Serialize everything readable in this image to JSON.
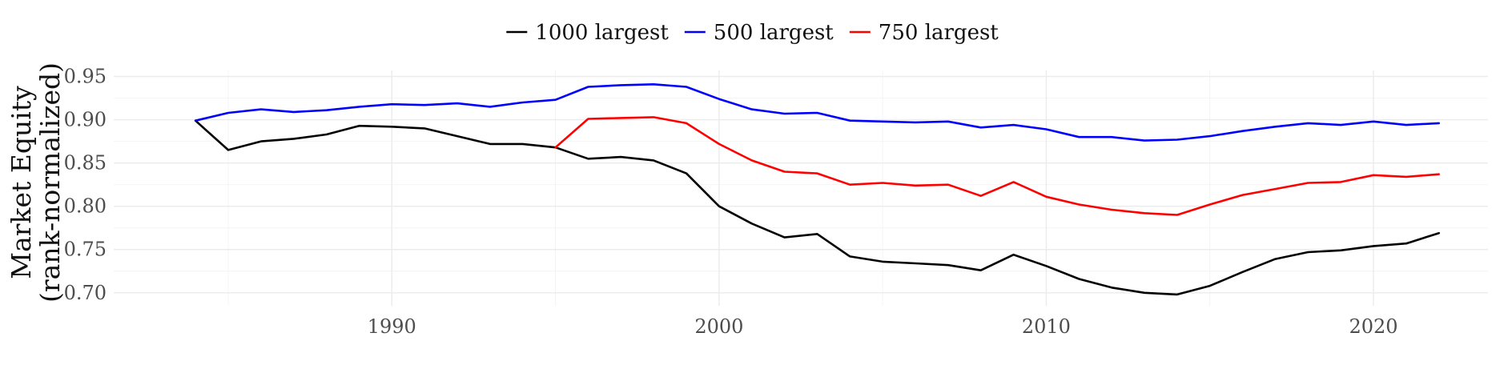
{
  "chart_data": {
    "type": "line",
    "title": "",
    "xlabel": "",
    "ylabel": [
      "Market Equity",
      "(rank-normalized)"
    ],
    "xlim": [
      1981.5,
      2023.5
    ],
    "ylim": [
      0.685,
      0.957
    ],
    "x_ticks": [
      1990,
      2000,
      2010,
      2020
    ],
    "x_minor_ticks": [
      1985,
      1995,
      2005,
      2015
    ],
    "y_ticks": [
      0.7,
      0.75,
      0.8,
      0.85,
      0.9,
      0.95
    ],
    "y_tick_labels": [
      "0.70",
      "0.75",
      "0.80",
      "0.85",
      "0.90",
      "0.95"
    ],
    "y_minor_ticks": [
      0.725,
      0.775,
      0.825,
      0.875,
      0.925
    ],
    "grid": true,
    "legend_position": "top",
    "series": [
      {
        "name": "1000 largest",
        "color": "#000000",
        "x": [
          1984,
          1985,
          1986,
          1987,
          1988,
          1989,
          1990,
          1991,
          1992,
          1993,
          1994,
          1995,
          1996,
          1997,
          1998,
          1999,
          2000,
          2001,
          2002,
          2003,
          2004,
          2005,
          2006,
          2007,
          2008,
          2009,
          2010,
          2011,
          2012,
          2013,
          2014,
          2015,
          2016,
          2017,
          2018,
          2019,
          2020,
          2021,
          2022
        ],
        "y": [
          0.899,
          0.865,
          0.875,
          0.878,
          0.883,
          0.893,
          0.892,
          0.89,
          0.881,
          0.872,
          0.872,
          0.868,
          0.855,
          0.857,
          0.853,
          0.838,
          0.8,
          0.78,
          0.764,
          0.768,
          0.742,
          0.736,
          0.734,
          0.732,
          0.726,
          0.744,
          0.731,
          0.716,
          0.706,
          0.7,
          0.698,
          0.708,
          0.724,
          0.739,
          0.747,
          0.749,
          0.754,
          0.757,
          0.769
        ]
      },
      {
        "name": "500 largest",
        "color": "#0000ff",
        "x": [
          1984,
          1985,
          1986,
          1987,
          1988,
          1989,
          1990,
          1991,
          1992,
          1993,
          1994,
          1995,
          1996,
          1997,
          1998,
          1999,
          2000,
          2001,
          2002,
          2003,
          2004,
          2005,
          2006,
          2007,
          2008,
          2009,
          2010,
          2011,
          2012,
          2013,
          2014,
          2015,
          2016,
          2017,
          2018,
          2019,
          2020,
          2021,
          2022
        ],
        "y": [
          0.899,
          0.908,
          0.912,
          0.909,
          0.911,
          0.915,
          0.918,
          0.917,
          0.919,
          0.915,
          0.92,
          0.923,
          0.938,
          0.94,
          0.941,
          0.938,
          0.924,
          0.912,
          0.907,
          0.908,
          0.899,
          0.898,
          0.897,
          0.898,
          0.891,
          0.894,
          0.889,
          0.88,
          0.88,
          0.876,
          0.877,
          0.881,
          0.887,
          0.892,
          0.896,
          0.894,
          0.898,
          0.894,
          0.896
        ]
      },
      {
        "name": "750 largest",
        "color": "#ff0000",
        "x": [
          1995,
          1996,
          1997,
          1998,
          1999,
          2000,
          2001,
          2002,
          2003,
          2004,
          2005,
          2006,
          2007,
          2008,
          2009,
          2010,
          2011,
          2012,
          2013,
          2014,
          2015,
          2016,
          2017,
          2018,
          2019,
          2020,
          2021,
          2022
        ],
        "y": [
          0.868,
          0.901,
          0.902,
          0.903,
          0.896,
          0.872,
          0.853,
          0.84,
          0.838,
          0.825,
          0.827,
          0.824,
          0.825,
          0.812,
          0.828,
          0.811,
          0.802,
          0.796,
          0.792,
          0.79,
          0.802,
          0.813,
          0.82,
          0.827,
          0.828,
          0.836,
          0.834,
          0.837
        ]
      }
    ]
  }
}
